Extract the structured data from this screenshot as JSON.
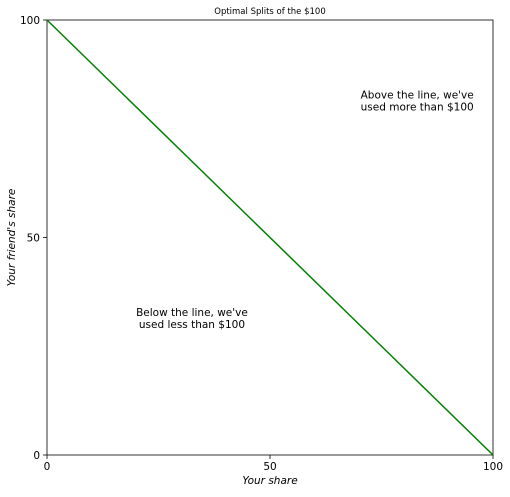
{
  "chart_data": {
    "type": "line",
    "title": "Optimal Splits of the $100",
    "xlabel": "Your share",
    "ylabel": "Your friend's share",
    "xlim": [
      0,
      100
    ],
    "ylim": [
      0,
      100
    ],
    "xticks": [
      0,
      50,
      100
    ],
    "yticks": [
      0,
      50,
      100
    ],
    "grid": false,
    "series": [
      {
        "color": "#008000",
        "x": [
          0,
          100
        ],
        "y": [
          100,
          0
        ]
      }
    ],
    "annotations": [
      {
        "lines": [
          "Above the line, we've",
          "used more than $100"
        ],
        "x": 83,
        "y": 81.5
      },
      {
        "lines": [
          "Below the line, we've",
          "used less than $100"
        ],
        "x": 32.5,
        "y": 31.5
      }
    ]
  }
}
